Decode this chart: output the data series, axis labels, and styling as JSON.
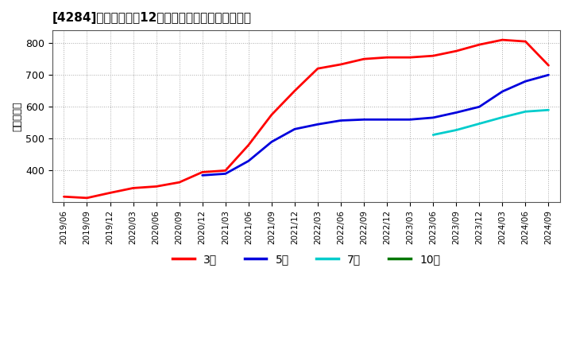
{
  "title": "[4284]　当期純利益12か月移動合計の平均値の推移",
  "ylabel": "（百万円）",
  "ylim": [
    300,
    840
  ],
  "yticks": [
    400,
    500,
    600,
    700,
    800
  ],
  "background_color": "#ffffff",
  "grid_color": "#aaaaaa",
  "series": {
    "3年": {
      "color": "#ff0000",
      "x": [
        0,
        1,
        2,
        3,
        4,
        5,
        6,
        7,
        8,
        9,
        10,
        11,
        12,
        13,
        14,
        15,
        16,
        17,
        18,
        19,
        20,
        21
      ],
      "values": [
        318,
        314,
        330,
        345,
        350,
        363,
        395,
        400,
        480,
        575,
        650,
        720,
        733,
        750,
        755,
        755,
        760,
        775,
        795,
        810,
        805,
        730
      ]
    },
    "5年": {
      "color": "#0000dd",
      "x": [
        6,
        7,
        8,
        9,
        10,
        11,
        12,
        13,
        14,
        15,
        16,
        17,
        18,
        19,
        20,
        21
      ],
      "values": [
        385,
        390,
        430,
        490,
        530,
        545,
        557,
        560,
        560,
        560,
        566,
        582,
        600,
        648,
        680,
        700
      ]
    },
    "7年": {
      "color": "#00cccc",
      "x": [
        16,
        17,
        18,
        19,
        20,
        21
      ],
      "values": [
        512,
        527,
        547,
        567,
        585,
        590
      ]
    },
    "10年": {
      "color": "#007700",
      "x": [],
      "values": []
    }
  },
  "xtick_labels": [
    "2019/06",
    "2019/09",
    "2019/12",
    "2020/03",
    "2020/06",
    "2020/09",
    "2020/12",
    "2021/03",
    "2021/06",
    "2021/09",
    "2021/12",
    "2022/03",
    "2022/06",
    "2022/09",
    "2022/12",
    "2023/03",
    "2023/06",
    "2023/09",
    "2023/12",
    "2024/03",
    "2024/06",
    "2024/09"
  ],
  "legend_labels": [
    "3年",
    "5年",
    "7年",
    "10年"
  ],
  "legend_colors": [
    "#ff0000",
    "#0000dd",
    "#00cccc",
    "#007700"
  ],
  "legend_text": [
    "3年",
    "5年",
    "7年",
    "10年"
  ]
}
